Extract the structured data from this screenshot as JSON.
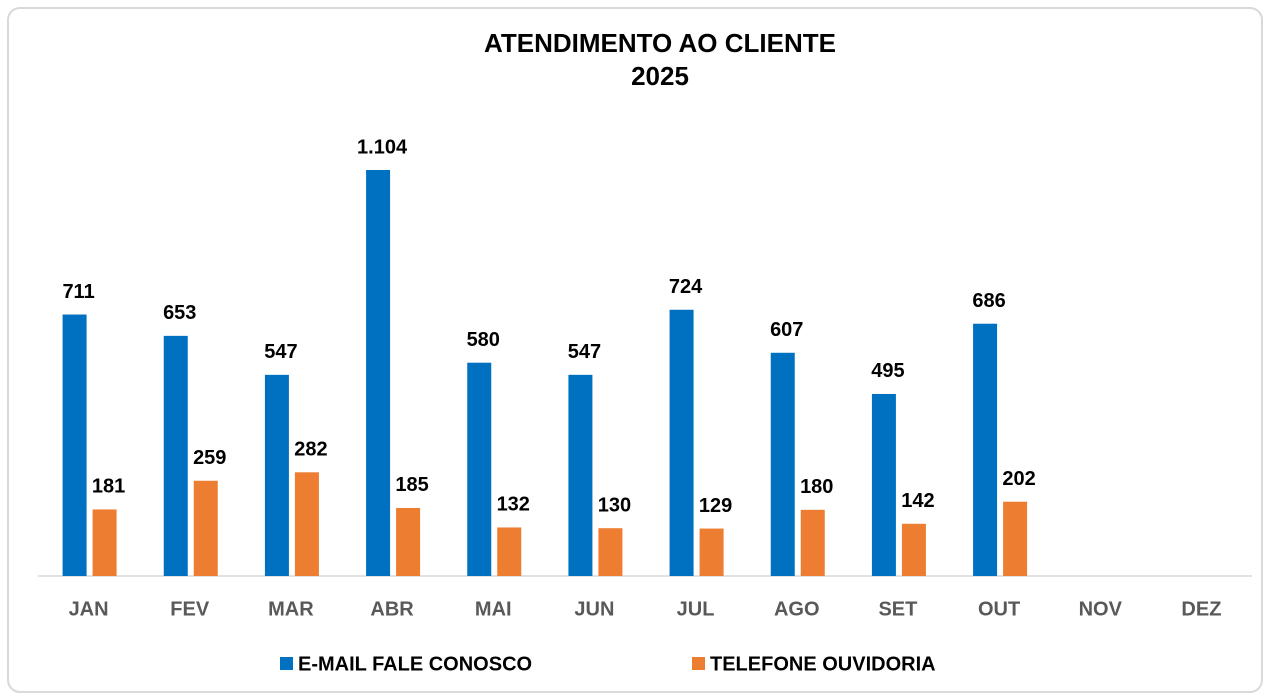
{
  "chart_data": {
    "type": "bar",
    "title": "ATENDIMENTO AO CLIENTE",
    "subtitle": "2025",
    "categories": [
      "JAN",
      "FEV",
      "MAR",
      "ABR",
      "MAI",
      "JUN",
      "JUL",
      "AGO",
      "SET",
      "OUT",
      "NOV",
      "DEZ"
    ],
    "series": [
      {
        "name": "E-MAIL FALE CONOSCO",
        "color": "#0070c0",
        "values": [
          711,
          653,
          547,
          1104,
          580,
          547,
          724,
          607,
          495,
          686,
          null,
          null
        ],
        "value_labels": [
          "711",
          "653",
          "547",
          "1.104",
          "580",
          "547",
          "724",
          "607",
          "495",
          "686",
          null,
          null
        ]
      },
      {
        "name": "TELEFONE OUVIDORIA",
        "color": "#ed7d31",
        "values": [
          181,
          259,
          282,
          185,
          132,
          130,
          129,
          180,
          142,
          202,
          null,
          null
        ]
      }
    ],
    "legend": "bottom"
  }
}
